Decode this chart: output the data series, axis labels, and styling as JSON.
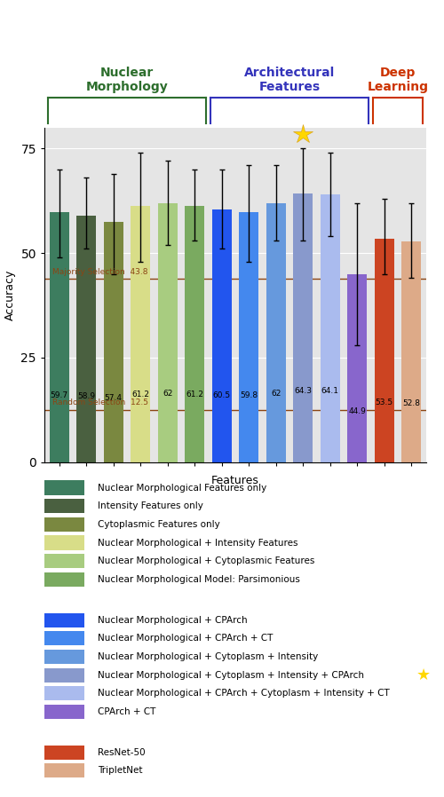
{
  "bars": [
    {
      "value": 59.7,
      "err_lo": 10,
      "err_hi": 10,
      "color": "#3d7d5f",
      "group": "nuclear"
    },
    {
      "value": 58.9,
      "err_lo": 8,
      "err_hi": 8,
      "color": "#4a6040",
      "group": "nuclear"
    },
    {
      "value": 57.4,
      "err_lo": 11,
      "err_hi": 11,
      "color": "#7a8840",
      "group": "nuclear"
    },
    {
      "value": 61.2,
      "err_lo": 13,
      "err_hi": 13,
      "color": "#d8dd88",
      "group": "nuclear"
    },
    {
      "value": 62.0,
      "err_lo": 10,
      "err_hi": 10,
      "color": "#a8cc80",
      "group": "nuclear"
    },
    {
      "value": 61.2,
      "err_lo": 8,
      "err_hi": 8,
      "color": "#7aaa60",
      "group": "nuclear"
    },
    {
      "value": 60.5,
      "err_lo": 10,
      "err_hi": 10,
      "color": "#2255ee",
      "group": "arch"
    },
    {
      "value": 59.8,
      "err_lo": 11,
      "err_hi": 11,
      "color": "#4488ee",
      "group": "arch"
    },
    {
      "value": 62.0,
      "err_lo": 9,
      "err_hi": 9,
      "color": "#6699dd",
      "group": "arch"
    },
    {
      "value": 64.3,
      "err_lo": 11,
      "err_hi": 11,
      "color": "#8899cc",
      "group": "arch"
    },
    {
      "value": 64.1,
      "err_lo": 10,
      "err_hi": 10,
      "color": "#aabbee",
      "group": "arch"
    },
    {
      "value": 44.9,
      "err_lo": 17,
      "err_hi": 17,
      "color": "#8866cc",
      "group": "arch"
    },
    {
      "value": 53.5,
      "err_lo": 9,
      "err_hi": 9,
      "color": "#cc4422",
      "group": "deep"
    },
    {
      "value": 52.8,
      "err_lo": 9,
      "err_hi": 9,
      "color": "#ddaa88",
      "group": "deep"
    }
  ],
  "bar_labels": [
    "59.7",
    "58.9",
    "57.4",
    "61.2",
    "62",
    "61.2",
    "60.5",
    "59.8",
    "62",
    "64.3",
    "64.1",
    "44.9",
    "53.5",
    "52.8"
  ],
  "majority_line": 43.8,
  "random_line": 12.5,
  "ylim": [
    0,
    80
  ],
  "yticks": [
    0,
    25,
    50,
    75
  ],
  "ylabel": "Accuracy",
  "xlabel": "Features",
  "background_color": "#e5e5e5",
  "majority_color": "#8B4513",
  "random_color": "#8B4513",
  "nuclear_bracket_color": "#2d6e2d",
  "arch_bracket_color": "#3333bb",
  "deep_bracket_color": "#cc3300",
  "nuclear_title": "Nuclear\nMorphology",
  "arch_title": "Architectural\nFeatures",
  "deep_title": "Deep\nLearning",
  "error_bars": [
    [
      49,
      70
    ],
    [
      51,
      68
    ],
    [
      45,
      69
    ],
    [
      48,
      74
    ],
    [
      52,
      72
    ],
    [
      53,
      70
    ],
    [
      51,
      70
    ],
    [
      48,
      71
    ],
    [
      53,
      71
    ],
    [
      53,
      75
    ],
    [
      54,
      74
    ],
    [
      28,
      62
    ],
    [
      45,
      63
    ],
    [
      44,
      62
    ]
  ],
  "star_bar_index": 9,
  "legend_items": [
    {
      "label": "Nuclear Morphological Features only",
      "color": "#3d7d5f",
      "group": 0
    },
    {
      "label": "Intensity Features only",
      "color": "#4a6040",
      "group": 0
    },
    {
      "label": "Cytoplasmic Features only",
      "color": "#7a8840",
      "group": 0
    },
    {
      "label": "Nuclear Morphological + Intensity Features",
      "color": "#d8dd88",
      "group": 0
    },
    {
      "label": "Nuclear Morphological + Cytoplasmic Features",
      "color": "#a8cc80",
      "group": 0
    },
    {
      "label": "Nuclear Morphological Model: Parsimonious",
      "color": "#7aaa60",
      "group": 0
    },
    {
      "label": "Nuclear Morphological + CPArch",
      "color": "#2255ee",
      "group": 1
    },
    {
      "label": "Nuclear Morphological + CPArch + CT",
      "color": "#4488ee",
      "group": 1
    },
    {
      "label": "Nuclear Morphological + Cytoplasm + Intensity",
      "color": "#6699dd",
      "group": 1
    },
    {
      "label": "Nuclear Morphological + Cytoplasm + Intensity + CPArch",
      "color": "#8899cc",
      "group": 1,
      "star": true
    },
    {
      "label": "Nuclear Morphological + CPArch + Cytoplasm + Intensity + CT",
      "color": "#aabbee",
      "group": 1
    },
    {
      "label": "CPArch + CT",
      "color": "#8866cc",
      "group": 1
    },
    {
      "label": "ResNet-50",
      "color": "#cc4422",
      "group": 2
    },
    {
      "label": "TripletNet",
      "color": "#ddaa88",
      "group": 2
    }
  ]
}
